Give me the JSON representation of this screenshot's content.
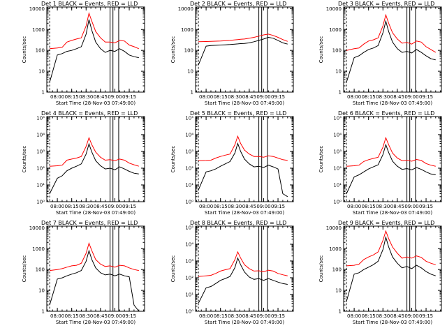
{
  "figure": {
    "panel_title_template": "Det {n}  BLACK = Events, RED = LLD",
    "xlabel": "Start Time (28-Nov-03 07:49:00)",
    "ylabel": "Counts/sec",
    "x_tick_labels": [
      "08:00",
      "08:15",
      "08:30",
      "08:45",
      "09:00",
      "09:15"
    ],
    "y_ticks_decimal": [
      "1",
      "10",
      "100",
      "1000",
      "10000"
    ],
    "y_ticks_power": [
      "10⁰",
      "10¹",
      "10²",
      "10³",
      "10⁴",
      "10⁵"
    ],
    "colors": {
      "events": "#000000",
      "lld": "#ff0000"
    }
  },
  "chart_data": [
    {
      "type": "line",
      "title": "Det 1  BLACK = Events, RED = LLD",
      "xlabel": "Start Time (28-Nov-03 07:49:00)",
      "ylabel": "Counts/sec",
      "y_scale": "log",
      "ylim": [
        1,
        12000
      ],
      "y_tick_style": "decimal",
      "x": [
        "07:52",
        "08:00",
        "08:05",
        "08:10",
        "08:15",
        "08:20",
        "08:25",
        "08:30",
        "08:33",
        "08:36",
        "08:40",
        "08:45",
        "08:50",
        "08:55",
        "09:00",
        "09:05",
        "09:10",
        "09:15",
        "09:20",
        "09:25"
      ],
      "vertical_lines": [
        "07:52",
        "08:55",
        "08:58",
        "09:04"
      ],
      "series": [
        {
          "name": "LLD",
          "color": "#ff0000",
          "values": [
            120,
            130,
            140,
            250,
            300,
            350,
            400,
            1500,
            6000,
            2500,
            800,
            400,
            250,
            250,
            230,
            300,
            280,
            180,
            150,
            120
          ]
        },
        {
          "name": "Events",
          "color": "#000000",
          "values": [
            3,
            60,
            70,
            90,
            100,
            120,
            150,
            600,
            3000,
            900,
            250,
            120,
            80,
            100,
            90,
            120,
            90,
            60,
            50,
            45
          ]
        }
      ]
    },
    {
      "type": "line",
      "title": "Det 2  BLACK = Events, RED = LLD",
      "xlabel": "Start Time (28-Nov-03 07:49:00)",
      "ylabel": "Counts/sec",
      "y_scale": "log",
      "ylim": [
        1,
        12000
      ],
      "y_tick_style": "decimal",
      "x": [
        "07:52",
        "08:00",
        "08:05",
        "08:10",
        "08:15",
        "08:20",
        "08:25",
        "08:30",
        "08:33",
        "08:36",
        "08:40",
        "08:45",
        "08:50",
        "08:55",
        "09:00",
        "09:05",
        "09:10",
        "09:15",
        "09:20",
        "09:25"
      ],
      "vertical_lines": [
        "07:52",
        "08:55",
        "08:58",
        "09:04"
      ],
      "series": [
        {
          "name": "LLD",
          "color": "#ff0000",
          "values": [
            260,
            265,
            270,
            275,
            280,
            290,
            300,
            320,
            330,
            340,
            350,
            380,
            420,
            480,
            550,
            600,
            520,
            420,
            330,
            270
          ]
        },
        {
          "name": "Events",
          "color": "#000000",
          "values": [
            20,
            160,
            170,
            175,
            180,
            185,
            190,
            200,
            205,
            210,
            215,
            230,
            260,
            300,
            350,
            420,
            380,
            300,
            230,
            200
          ]
        }
      ]
    },
    {
      "type": "line",
      "title": "Det 3  BLACK = Events, RED = LLD",
      "xlabel": "Start Time (28-Nov-03 07:49:00)",
      "ylabel": "Counts/sec",
      "y_scale": "log",
      "ylim": [
        1,
        12000
      ],
      "y_tick_style": "decimal",
      "x": [
        "07:52",
        "08:00",
        "08:05",
        "08:10",
        "08:15",
        "08:20",
        "08:25",
        "08:30",
        "08:33",
        "08:36",
        "08:40",
        "08:45",
        "08:50",
        "08:55",
        "09:00",
        "09:05",
        "09:10",
        "09:15",
        "09:20",
        "09:25"
      ],
      "vertical_lines": [
        "07:52",
        "08:55",
        "08:58",
        "09:04"
      ],
      "series": [
        {
          "name": "LLD",
          "color": "#ff0000",
          "values": [
            100,
            120,
            130,
            200,
            280,
            320,
            400,
            1500,
            5000,
            2000,
            700,
            350,
            220,
            240,
            200,
            280,
            250,
            150,
            110,
            80
          ]
        },
        {
          "name": "Events",
          "color": "#000000",
          "values": [
            3,
            45,
            55,
            80,
            110,
            130,
            170,
            700,
            2500,
            800,
            250,
            120,
            80,
            90,
            75,
            110,
            80,
            55,
            40,
            35
          ]
        }
      ]
    },
    {
      "type": "line",
      "title": "Det 4  BLACK = Events, RED = LLD",
      "xlabel": "Start Time (28-Nov-03 07:49:00)",
      "ylabel": "Counts/sec",
      "y_scale": "log",
      "ylim": [
        1,
        120000
      ],
      "y_tick_style": "power",
      "x": [
        "07:52",
        "08:00",
        "08:05",
        "08:10",
        "08:15",
        "08:20",
        "08:25",
        "08:30",
        "08:33",
        "08:36",
        "08:40",
        "08:45",
        "08:50",
        "08:55",
        "09:00",
        "09:05",
        "09:10",
        "09:15",
        "09:20",
        "09:25"
      ],
      "vertical_lines": [
        "07:52",
        "08:55",
        "08:58",
        "09:04"
      ],
      "series": [
        {
          "name": "LLD",
          "color": "#ff0000",
          "values": [
            130,
            140,
            150,
            300,
            350,
            400,
            500,
            2000,
            6500,
            2500,
            900,
            450,
            300,
            320,
            280,
            350,
            300,
            200,
            160,
            130
          ]
        },
        {
          "name": "Events",
          "color": "#000000",
          "values": [
            3,
            25,
            35,
            70,
            100,
            130,
            180,
            700,
            2800,
            900,
            280,
            140,
            90,
            100,
            80,
            120,
            90,
            65,
            50,
            45
          ]
        }
      ]
    },
    {
      "type": "line",
      "title": "Det 5  BLACK = Events, RED = LLD",
      "xlabel": "Start Time (28-Nov-03 07:49:00)",
      "ylabel": "Counts/sec",
      "y_scale": "log",
      "ylim": [
        1,
        120000
      ],
      "y_tick_style": "power",
      "x": [
        "07:52",
        "08:00",
        "08:05",
        "08:10",
        "08:15",
        "08:20",
        "08:25",
        "08:30",
        "08:33",
        "08:36",
        "08:40",
        "08:45",
        "08:50",
        "08:55",
        "09:00",
        "09:05",
        "09:10",
        "09:15",
        "09:20",
        "09:25"
      ],
      "vertical_lines": [
        "07:52",
        "08:55",
        "08:58",
        "09:04"
      ],
      "series": [
        {
          "name": "LLD",
          "color": "#ff0000",
          "values": [
            280,
            290,
            300,
            400,
            500,
            600,
            700,
            2500,
            8000,
            3000,
            1200,
            700,
            500,
            500,
            450,
            550,
            500,
            400,
            320,
            290
          ]
        },
        {
          "name": "Events",
          "color": "#000000",
          "values": [
            5,
            60,
            70,
            90,
            130,
            180,
            250,
            800,
            3000,
            1000,
            350,
            180,
            120,
            130,
            110,
            150,
            120,
            90,
            3,
            2
          ]
        }
      ]
    },
    {
      "type": "line",
      "title": "Det 6  BLACK = Events, RED = LLD",
      "xlabel": "Start Time (28-Nov-03 07:49:00)",
      "ylabel": "Counts/sec",
      "y_scale": "log",
      "ylim": [
        1,
        120000
      ],
      "y_tick_style": "power",
      "x": [
        "07:52",
        "08:00",
        "08:05",
        "08:10",
        "08:15",
        "08:20",
        "08:25",
        "08:30",
        "08:33",
        "08:36",
        "08:40",
        "08:45",
        "08:50",
        "08:55",
        "09:00",
        "09:05",
        "09:10",
        "09:15",
        "09:20",
        "09:25"
      ],
      "vertical_lines": [
        "07:52",
        "08:55",
        "08:58",
        "09:04"
      ],
      "series": [
        {
          "name": "LLD",
          "color": "#ff0000",
          "values": [
            130,
            140,
            150,
            250,
            320,
            380,
            450,
            1800,
            6500,
            2500,
            800,
            400,
            280,
            300,
            260,
            330,
            290,
            190,
            150,
            130
          ]
        },
        {
          "name": "Events",
          "color": "#000000",
          "values": [
            3,
            30,
            40,
            60,
            90,
            120,
            160,
            650,
            2500,
            850,
            260,
            130,
            85,
            95,
            80,
            110,
            85,
            60,
            45,
            40
          ]
        }
      ]
    },
    {
      "type": "line",
      "title": "Det 7  BLACK = Events, RED = LLD",
      "xlabel": "Start Time (28-Nov-03 07:49:00)",
      "ylabel": "Counts/sec",
      "y_scale": "log",
      "ylim": [
        1,
        12000
      ],
      "y_tick_style": "decimal",
      "x": [
        "07:52",
        "08:00",
        "08:05",
        "08:10",
        "08:15",
        "08:20",
        "08:25",
        "08:30",
        "08:33",
        "08:36",
        "08:40",
        "08:45",
        "08:50",
        "08:55",
        "09:00",
        "09:05",
        "09:10",
        "09:15",
        "09:20",
        "09:25"
      ],
      "vertical_lines": [
        "07:52",
        "08:55",
        "08:58",
        "09:04"
      ],
      "series": [
        {
          "name": "LLD",
          "color": "#ff0000",
          "values": [
            90,
            100,
            110,
            130,
            150,
            160,
            200,
            600,
            1800,
            800,
            300,
            180,
            140,
            150,
            130,
            160,
            150,
            120,
            100,
            90
          ]
        },
        {
          "name": "Events",
          "color": "#000000",
          "values": [
            2,
            35,
            40,
            50,
            60,
            70,
            90,
            250,
            800,
            300,
            120,
            70,
            55,
            60,
            50,
            60,
            50,
            45,
            2,
            1
          ]
        }
      ]
    },
    {
      "type": "line",
      "title": "Det 8  BLACK = Events, RED = LLD",
      "xlabel": "Start Time (28-Nov-03 07:49:00)",
      "ylabel": "Counts/sec",
      "y_scale": "log",
      "ylim": [
        1,
        120000
      ],
      "y_tick_style": "power",
      "x": [
        "07:52",
        "08:00",
        "08:05",
        "08:10",
        "08:15",
        "08:20",
        "08:25",
        "08:30",
        "08:33",
        "08:36",
        "08:40",
        "08:45",
        "08:50",
        "08:55",
        "09:00",
        "09:05",
        "09:10",
        "09:15",
        "09:20",
        "09:25"
      ],
      "vertical_lines": [
        "07:52",
        "08:55",
        "08:58",
        "09:04"
      ],
      "series": [
        {
          "name": "LLD",
          "color": "#ff0000",
          "values": [
            120,
            130,
            140,
            180,
            250,
            300,
            350,
            1200,
            3500,
            1500,
            600,
            350,
            250,
            260,
            230,
            280,
            250,
            180,
            150,
            130
          ]
        },
        {
          "name": "Events",
          "color": "#000000",
          "values": [
            3,
            25,
            30,
            45,
            70,
            90,
            120,
            400,
            1500,
            600,
            220,
            110,
            80,
            90,
            70,
            90,
            70,
            55,
            45,
            40
          ]
        }
      ]
    },
    {
      "type": "line",
      "title": "Det 9  BLACK = Events, RED = LLD",
      "xlabel": "Start Time (28-Nov-03 07:49:00)",
      "ylabel": "Counts/sec",
      "y_scale": "log",
      "ylim": [
        1,
        12000
      ],
      "y_tick_style": "decimal",
      "x": [
        "07:52",
        "08:00",
        "08:05",
        "08:10",
        "08:15",
        "08:20",
        "08:25",
        "08:30",
        "08:33",
        "08:36",
        "08:40",
        "08:45",
        "08:50",
        "08:55",
        "09:00",
        "09:05",
        "09:10",
        "09:15",
        "09:20",
        "09:25"
      ],
      "vertical_lines": [
        "07:52",
        "08:55",
        "08:58",
        "09:04"
      ],
      "series": [
        {
          "name": "LLD",
          "color": "#ff0000",
          "values": [
            150,
            160,
            180,
            300,
            400,
            500,
            700,
            2500,
            7000,
            3000,
            1200,
            600,
            350,
            400,
            350,
            450,
            380,
            250,
            200,
            170
          ]
        },
        {
          "name": "Events",
          "color": "#000000",
          "values": [
            3,
            60,
            70,
            100,
            130,
            170,
            250,
            900,
            3500,
            1200,
            400,
            200,
            120,
            140,
            110,
            160,
            120,
            80,
            60,
            50
          ]
        }
      ]
    }
  ]
}
